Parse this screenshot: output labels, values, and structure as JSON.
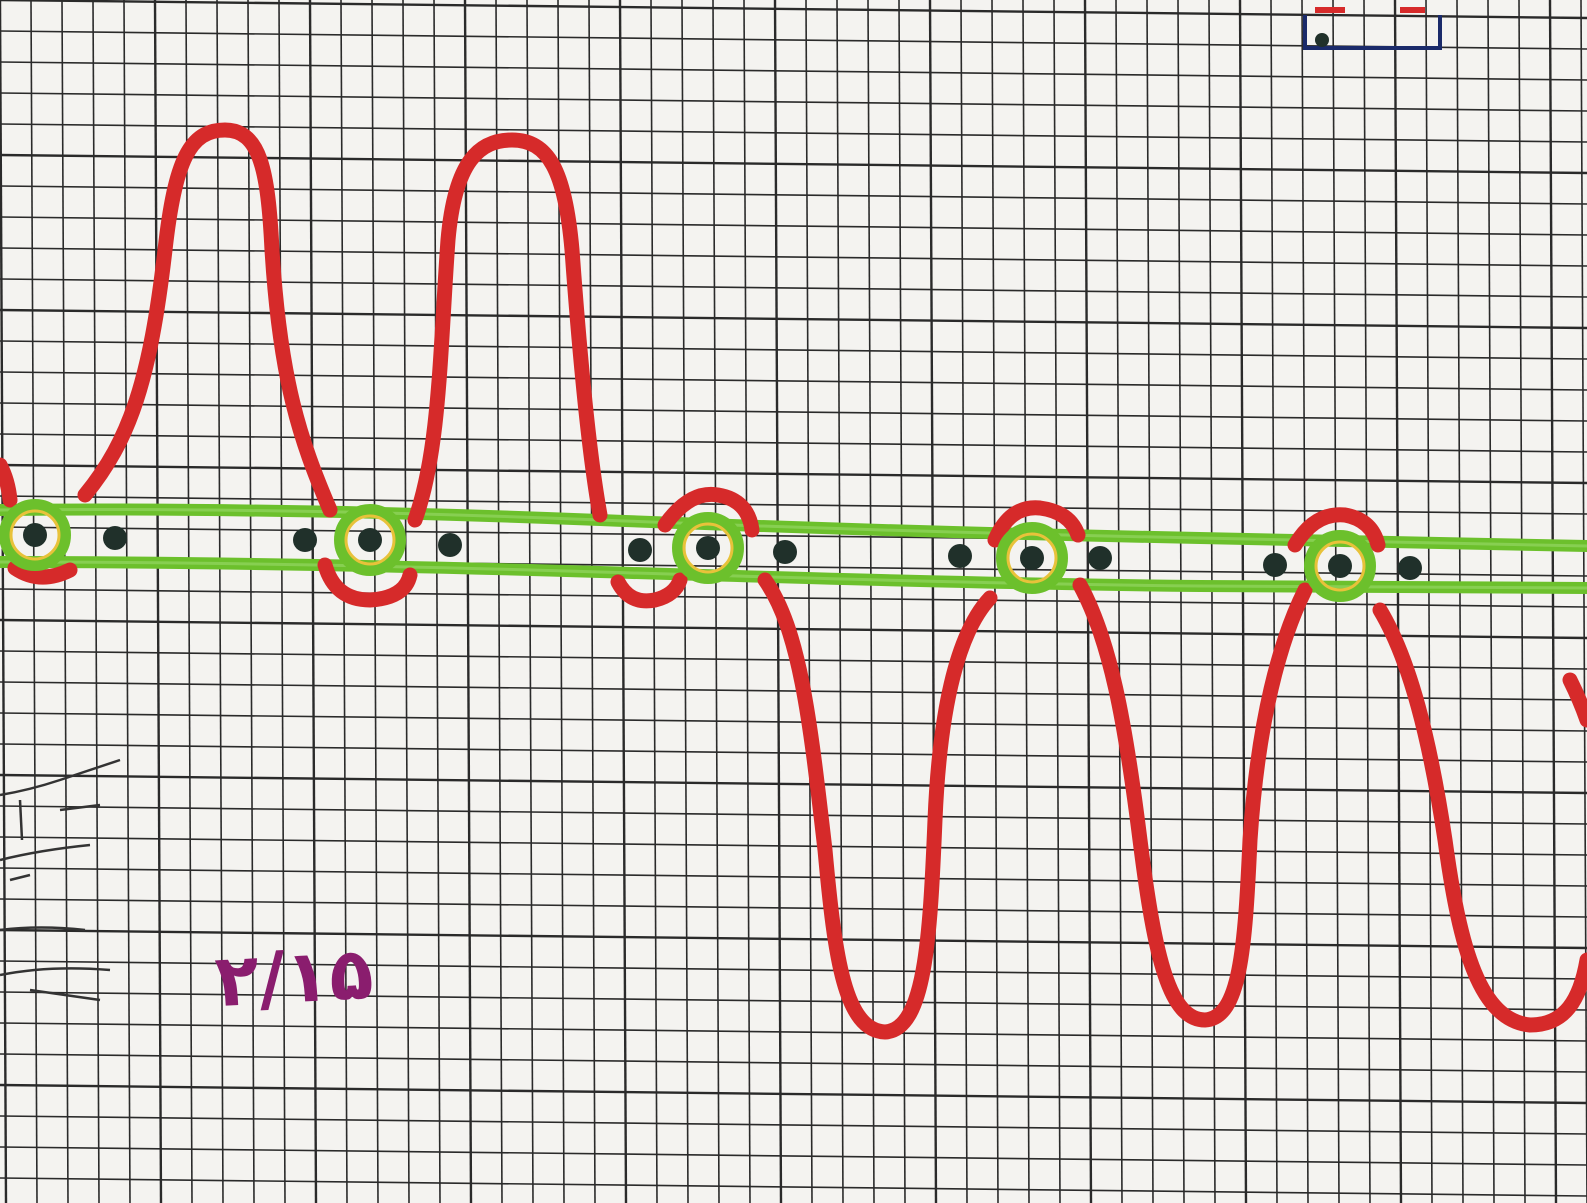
{
  "paper": {
    "background": "#f4f3f0",
    "grid_color": "#2a2a2a"
  },
  "annotation": {
    "text": "۲/۱۵",
    "color": "#8a1d6e"
  },
  "strands": {
    "green_color": "#6cc02c",
    "red_color": "#d62a2a",
    "dot_color": "#20302a",
    "ring_color": "#e8c23a"
  }
}
